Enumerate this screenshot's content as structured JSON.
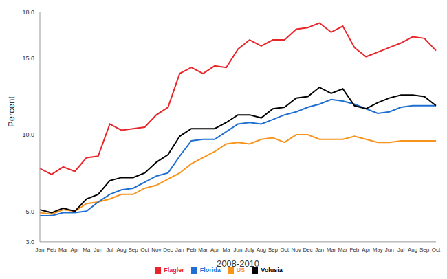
{
  "chart_data": {
    "type": "line",
    "x_label": "2008-2010",
    "y_label": "Percent",
    "categories": [
      "Jan",
      "Feb",
      "Mar",
      "Apr",
      "Ma",
      "Jun",
      "Jul",
      "Aug",
      "Sep",
      "Oct",
      "Nov",
      "Dec",
      "Jan",
      "Feb",
      "Mar",
      "Apr",
      "Ma",
      "Jun",
      "July",
      "Aug",
      "Sep",
      "Oct",
      "Nov",
      "Dec",
      "Jan",
      "Mar",
      "Mar",
      "Feb",
      "Apr",
      "May",
      "Jun",
      "Jul",
      "Aug",
      "Sep",
      "Oct"
    ],
    "series": [
      {
        "name": "US",
        "color": "#f7941d",
        "values": [
          4.9,
          4.8,
          5.1,
          5.0,
          5.5,
          5.6,
          5.8,
          6.1,
          6.1,
          6.5,
          6.7,
          7.1,
          7.5,
          8.1,
          8.5,
          8.9,
          9.4,
          9.5,
          9.4,
          9.7,
          9.8,
          9.5,
          10.0,
          10.0,
          9.7,
          9.7,
          9.7,
          9.9,
          9.7,
          9.5,
          9.5,
          9.6,
          9.6,
          9.6,
          9.6
        ]
      },
      {
        "name": "Florida",
        "color": "#1f6fd1",
        "values": [
          4.7,
          4.7,
          4.9,
          4.9,
          5.0,
          5.6,
          6.1,
          6.4,
          6.5,
          6.9,
          7.3,
          7.5,
          8.6,
          9.6,
          9.7,
          9.7,
          10.2,
          10.7,
          10.8,
          10.7,
          11.0,
          11.3,
          11.5,
          11.8,
          12.0,
          12.3,
          12.2,
          12.0,
          11.7,
          11.4,
          11.5,
          11.8,
          11.9,
          11.9,
          11.9
        ]
      },
      {
        "name": "Flagler",
        "color": "#e8262a",
        "values": [
          7.8,
          7.4,
          7.9,
          7.6,
          8.5,
          8.6,
          10.7,
          10.3,
          10.4,
          10.5,
          11.3,
          11.8,
          14.0,
          14.4,
          14.0,
          14.5,
          14.4,
          15.6,
          16.2,
          15.8,
          16.2,
          16.2,
          16.9,
          17.0,
          17.3,
          16.7,
          17.1,
          15.7,
          15.1,
          15.4,
          15.7,
          16.0,
          16.4,
          16.3,
          15.5
        ]
      },
      {
        "name": "Volusia",
        "color": "#000000",
        "values": [
          5.1,
          4.9,
          5.2,
          5.0,
          5.8,
          6.1,
          7.0,
          7.2,
          7.2,
          7.5,
          8.2,
          8.7,
          9.9,
          10.4,
          10.4,
          10.4,
          10.8,
          11.3,
          11.3,
          11.1,
          11.7,
          11.8,
          12.4,
          12.5,
          13.1,
          12.7,
          13.0,
          11.9,
          11.7,
          12.1,
          12.4,
          12.6,
          12.6,
          12.5,
          11.9
        ]
      }
    ],
    "ylim": [
      3,
      18
    ],
    "yticks": [
      {
        "value": 3,
        "label": "3.0"
      },
      {
        "value": 5,
        "label": "5.0"
      },
      {
        "value": 10,
        "label": "10.0"
      },
      {
        "value": 15,
        "label": "15.0"
      },
      {
        "value": 18,
        "label": "18.0"
      }
    ],
    "grid": false,
    "legend": "bottom"
  }
}
